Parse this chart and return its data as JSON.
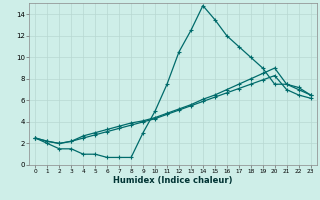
{
  "xlabel": "Humidex (Indice chaleur)",
  "xlim": [
    -0.5,
    23.5
  ],
  "ylim": [
    0,
    15
  ],
  "yticks": [
    0,
    2,
    4,
    6,
    8,
    10,
    12,
    14
  ],
  "xticks": [
    0,
    1,
    2,
    3,
    4,
    5,
    6,
    7,
    8,
    9,
    10,
    11,
    12,
    13,
    14,
    15,
    16,
    17,
    18,
    19,
    20,
    21,
    22,
    23
  ],
  "bg_color": "#ceeee8",
  "grid_color": "#b8d8d2",
  "line_color": "#006b6b",
  "line1_x": [
    0,
    1,
    2,
    3,
    4,
    5,
    6,
    7,
    8,
    9,
    10,
    11,
    12,
    13,
    14,
    15,
    16,
    17,
    18,
    19,
    20,
    21,
    22,
    23
  ],
  "line1_y": [
    2.5,
    2.0,
    1.5,
    1.5,
    1.0,
    1.0,
    0.7,
    0.7,
    0.7,
    3.0,
    5.0,
    7.5,
    10.5,
    12.5,
    14.8,
    13.5,
    12.0,
    11.0,
    10.0,
    9.0,
    7.5,
    7.5,
    7.0,
    6.5
  ],
  "line2_x": [
    0,
    1,
    2,
    3,
    4,
    5,
    6,
    7,
    8,
    9,
    10,
    11,
    12,
    13,
    14,
    15,
    16,
    17,
    18,
    19,
    20,
    21,
    22,
    23
  ],
  "line2_y": [
    2.5,
    2.2,
    2.0,
    2.2,
    2.5,
    2.8,
    3.1,
    3.4,
    3.7,
    4.0,
    4.3,
    4.7,
    5.1,
    5.5,
    5.9,
    6.3,
    6.7,
    7.1,
    7.5,
    7.9,
    8.3,
    7.0,
    6.5,
    6.2
  ],
  "line3_x": [
    0,
    1,
    2,
    3,
    4,
    5,
    6,
    7,
    8,
    9,
    10,
    11,
    12,
    13,
    14,
    15,
    16,
    17,
    18,
    19,
    20,
    21,
    22,
    23
  ],
  "line3_y": [
    2.5,
    2.2,
    2.0,
    2.2,
    2.7,
    3.0,
    3.3,
    3.6,
    3.9,
    4.1,
    4.4,
    4.8,
    5.2,
    5.6,
    6.1,
    6.5,
    7.0,
    7.5,
    8.0,
    8.5,
    9.0,
    7.5,
    7.2,
    6.5
  ]
}
